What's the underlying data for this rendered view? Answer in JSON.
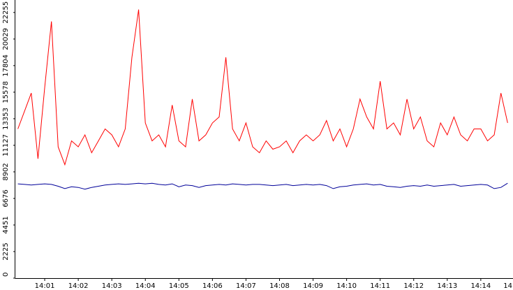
{
  "chart_data": {
    "type": "line",
    "x": [
      840.2,
      840.4,
      840.6,
      840.8,
      841.0,
      841.2,
      841.4,
      841.6,
      841.8,
      842.0,
      842.2,
      842.4,
      842.6,
      842.8,
      843.0,
      843.2,
      843.4,
      843.6,
      843.8,
      844.0,
      844.2,
      844.4,
      844.6,
      844.8,
      845.0,
      845.2,
      845.4,
      845.6,
      845.8,
      846.0,
      846.2,
      846.4,
      846.6,
      846.8,
      847.0,
      847.2,
      847.4,
      847.6,
      847.8,
      848.0,
      848.2,
      848.4,
      848.6,
      848.8,
      849.0,
      849.2,
      849.4,
      849.6,
      849.8,
      850.0,
      850.2,
      850.4,
      850.6,
      850.8,
      851.0,
      851.2,
      851.4,
      851.6,
      851.8,
      852.0,
      852.2,
      852.4,
      852.6,
      852.8,
      853.0,
      853.2,
      853.4,
      853.6,
      853.8,
      854.0,
      854.2,
      854.4,
      854.6,
      854.8
    ],
    "series": [
      {
        "color": "#ff0000",
        "values": [
          12500,
          14000,
          15500,
          10000,
          16000,
          21500,
          11000,
          9500,
          11500,
          11000,
          12000,
          10500,
          11500,
          12500,
          12000,
          11000,
          12500,
          18500,
          22500,
          13000,
          11500,
          12000,
          11000,
          14500,
          11500,
          11000,
          15000,
          11500,
          12000,
          13000,
          13500,
          18500,
          12500,
          11500,
          13000,
          11000,
          10500,
          11500,
          10800,
          11000,
          11500,
          10500,
          11500,
          12000,
          11500,
          12000,
          13200,
          11500,
          12500,
          11000,
          12500,
          15000,
          13500,
          12500,
          16500,
          12500,
          13000,
          12000,
          15000,
          12500,
          13500,
          11500,
          11000,
          13000,
          12000,
          13500,
          12000,
          11500,
          12500,
          12500,
          11500,
          12000,
          15500,
          13000
        ]
      },
      {
        "color": "#000099",
        "values": [
          7900,
          7850,
          7800,
          7850,
          7900,
          7850,
          7700,
          7500,
          7650,
          7600,
          7450,
          7600,
          7700,
          7800,
          7850,
          7900,
          7850,
          7900,
          7950,
          7900,
          7950,
          7850,
          7800,
          7900,
          7650,
          7800,
          7750,
          7600,
          7750,
          7800,
          7850,
          7800,
          7900,
          7850,
          7800,
          7850,
          7850,
          7800,
          7750,
          7800,
          7850,
          7750,
          7800,
          7850,
          7800,
          7850,
          7750,
          7500,
          7650,
          7700,
          7800,
          7850,
          7900,
          7800,
          7850,
          7700,
          7650,
          7600,
          7700,
          7750,
          7700,
          7800,
          7700,
          7750,
          7800,
          7850,
          7700,
          7750,
          7800,
          7850,
          7800,
          7500,
          7600,
          7950
        ]
      }
    ],
    "xlim": [
      840.125,
      854.96
    ],
    "xticks": [
      {
        "value": 841,
        "label": "14:01"
      },
      {
        "value": 842,
        "label": "14:02"
      },
      {
        "value": 843,
        "label": "14:03"
      },
      {
        "value": 844,
        "label": "14:04"
      },
      {
        "value": 845,
        "label": "14:05"
      },
      {
        "value": 846,
        "label": "14:06"
      },
      {
        "value": 847,
        "label": "14:07"
      },
      {
        "value": 848,
        "label": "14:08"
      },
      {
        "value": 849,
        "label": "14:09"
      },
      {
        "value": 850,
        "label": "14:10"
      },
      {
        "value": 851,
        "label": "14:11"
      },
      {
        "value": 852,
        "label": "14:12"
      },
      {
        "value": 853,
        "label": "14:13"
      },
      {
        "value": 854,
        "label": "14:14"
      },
      {
        "value": 855,
        "label": "14"
      }
    ],
    "ylim": [
      0,
      23300
    ],
    "yticks": [
      0,
      2225,
      4451,
      6676,
      8902,
      11127,
      13353,
      15578,
      17804,
      20029,
      22255
    ]
  }
}
